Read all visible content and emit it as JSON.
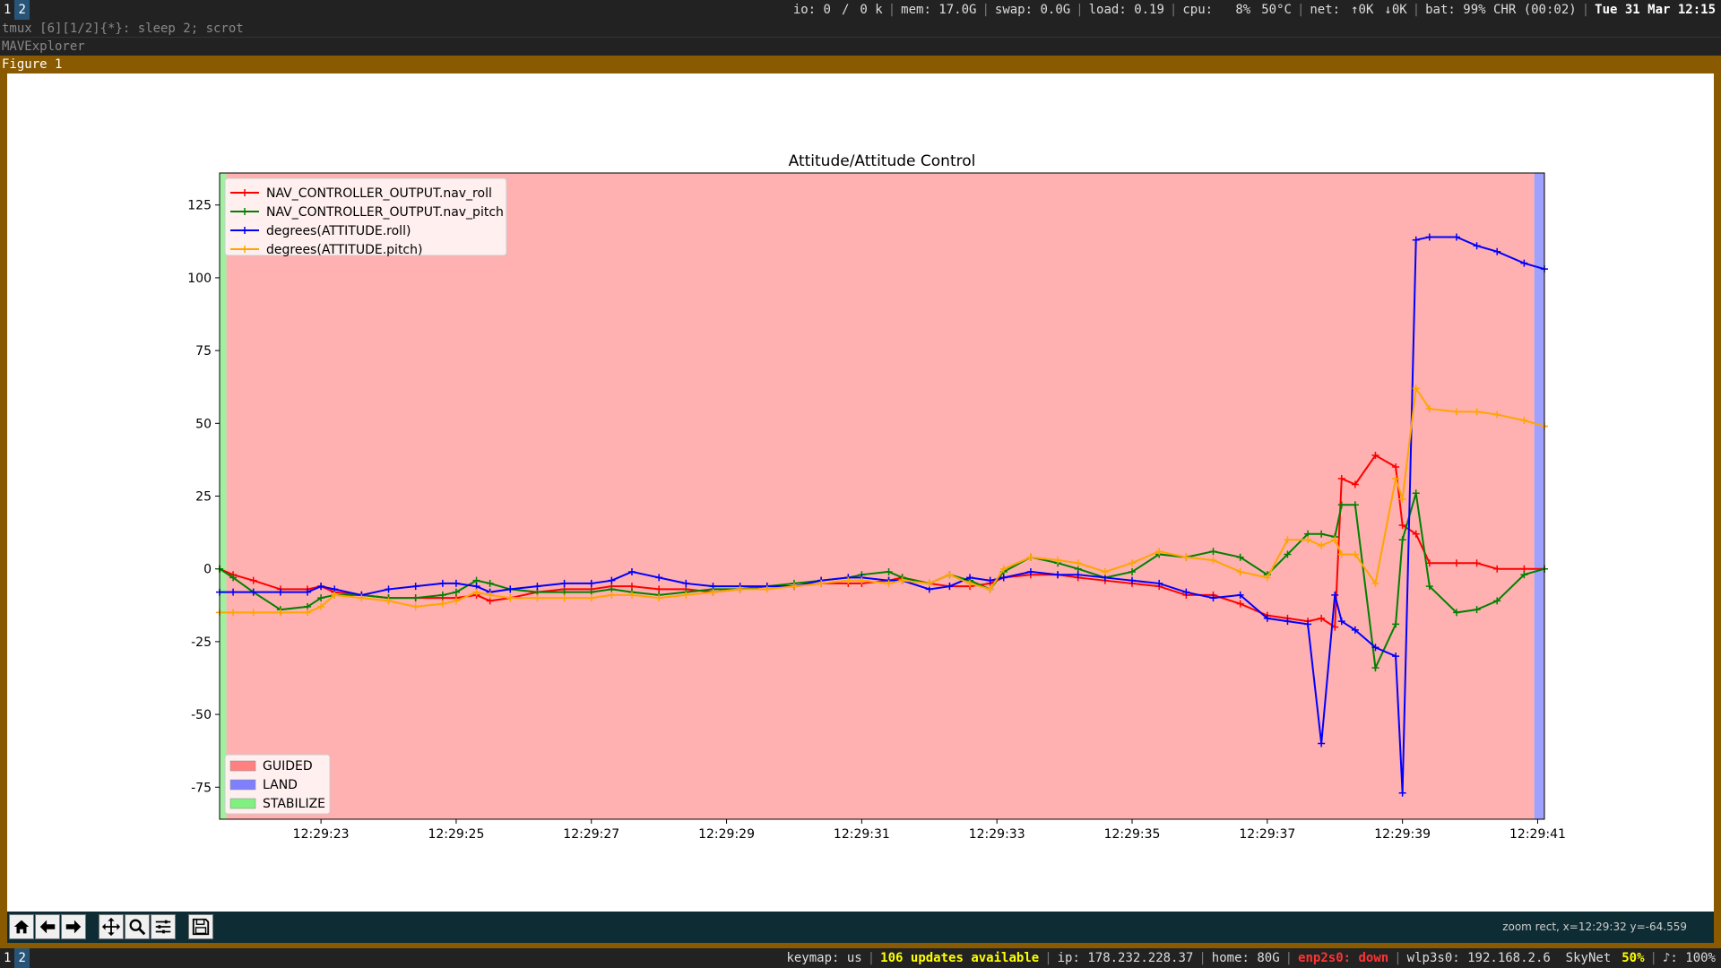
{
  "topbar": {
    "workspaces": [
      "1",
      "2"
    ],
    "io": "io: 0",
    "slash": "/",
    "io_k": "0 k",
    "mem": "mem: 17.0G",
    "swap": "swap: 0.0G",
    "load": "load: 0.19",
    "cpu": "cpu:   8%",
    "temp": "50°C",
    "net": "net:",
    "net_up": "↑0K",
    "net_down": "↓0K",
    "bat": "bat: 99% CHR (00:02)",
    "date": "Tue 31 Mar 12:15"
  },
  "tmux_title": "tmux [6][1/2]{*}:  sleep 2; scrot",
  "app_title": "MAVExplorer",
  "figure_title": "Figure 1",
  "toolbar": {
    "coord_text": "zoom rect, x=12:29:32 y=-64.559",
    "buttons": [
      "home-icon",
      "back-icon",
      "forward-icon",
      "pan-icon",
      "zoom-icon",
      "configure-icon",
      "save-icon"
    ]
  },
  "bottombar": {
    "workspaces": [
      "1",
      "2"
    ],
    "keymap": "keymap: us",
    "updates": "106 updates available",
    "ip": "ip: 178.232.228.37",
    "home": "home: 80G",
    "enp": "enp2s0: down",
    "wlp": "wlp3s0: 192.168.2.6  SkyNet",
    "wifi_pct": "50%",
    "vol": "♪: 100%"
  },
  "colors": {
    "guided": "#ffb0b0",
    "land": "#a0a0ff",
    "stabilize": "#a0f0a0",
    "roll": "#ff0000",
    "pitch": "#008000",
    "att_roll": "#0000ff",
    "att_pitch": "#ffa500"
  },
  "chart_data": {
    "type": "line",
    "title": "Attitude/Attitude Control",
    "xlabel": "",
    "ylabel": "",
    "xlim": [
      21.5,
      41.1
    ],
    "ylim": [
      -86,
      136
    ],
    "x_tick_labels": [
      "12:29:23",
      "12:29:25",
      "12:29:27",
      "12:29:29",
      "12:29:31",
      "12:29:33",
      "12:29:35",
      "12:29:37",
      "12:29:39",
      "12:29:41"
    ],
    "x_ticks": [
      23,
      25,
      27,
      29,
      31,
      33,
      35,
      37,
      39,
      41
    ],
    "y_ticks": [
      -75,
      -50,
      -25,
      0,
      25,
      50,
      75,
      100,
      125
    ],
    "legend_top": "top-left",
    "legend_bottom": "bottom-left",
    "modes": [
      {
        "name": "GUIDED",
        "start": 21.6,
        "end": 40.95
      },
      {
        "name": "LAND",
        "start": 40.95,
        "end": 41.1
      },
      {
        "name": "STABILIZE",
        "start": 21.5,
        "end": 21.6
      }
    ],
    "series": [
      {
        "name": "NAV_CONTROLLER_OUTPUT.nav_roll",
        "x": [
          21.5,
          21.7,
          22.0,
          22.4,
          22.8,
          23.0,
          23.2,
          23.6,
          24.0,
          24.4,
          24.8,
          25.0,
          25.3,
          25.5,
          25.8,
          26.2,
          26.6,
          27.0,
          27.3,
          27.6,
          28.0,
          28.4,
          28.8,
          29.2,
          29.6,
          30.0,
          30.4,
          30.8,
          31.0,
          31.4,
          31.6,
          32.0,
          32.3,
          32.6,
          32.9,
          33.1,
          33.5,
          33.9,
          34.2,
          34.6,
          35.0,
          35.4,
          35.8,
          36.2,
          36.6,
          37.0,
          37.3,
          37.6,
          37.8,
          38.0,
          38.1,
          38.3,
          38.6,
          38.9,
          39.0,
          39.2,
          39.4,
          39.8,
          40.1,
          40.4,
          40.8,
          41.1
        ],
        "y": [
          0,
          -2,
          -4,
          -7,
          -7,
          -6,
          -8,
          -9,
          -10,
          -10,
          -10,
          -10,
          -9,
          -11,
          -10,
          -8,
          -7,
          -7,
          -6,
          -6,
          -7,
          -7,
          -8,
          -7,
          -6,
          -6,
          -5,
          -5,
          -5,
          -4,
          -3,
          -5,
          -6,
          -6,
          -5,
          -3,
          -2,
          -2,
          -3,
          -4,
          -5,
          -6,
          -9,
          -9,
          -12,
          -16,
          -17,
          -18,
          -17,
          -20,
          31,
          29,
          39,
          35,
          15,
          12,
          2,
          2,
          2,
          0,
          0,
          0
        ]
      },
      {
        "name": "NAV_CONTROLLER_OUTPUT.nav_pitch",
        "x": [
          21.5,
          21.7,
          22.0,
          22.4,
          22.8,
          23.0,
          23.2,
          23.6,
          24.0,
          24.4,
          24.8,
          25.0,
          25.3,
          25.5,
          25.8,
          26.2,
          26.6,
          27.0,
          27.3,
          27.6,
          28.0,
          28.4,
          28.8,
          29.2,
          29.6,
          30.0,
          30.4,
          30.8,
          31.0,
          31.4,
          31.6,
          32.0,
          32.3,
          32.6,
          32.9,
          33.1,
          33.5,
          33.9,
          34.2,
          34.6,
          35.0,
          35.4,
          35.8,
          36.2,
          36.6,
          37.0,
          37.3,
          37.6,
          37.8,
          38.0,
          38.1,
          38.3,
          38.6,
          38.9,
          39.0,
          39.2,
          39.4,
          39.8,
          40.1,
          40.4,
          40.8,
          41.1
        ],
        "y": [
          0,
          -3,
          -8,
          -14,
          -13,
          -10,
          -9,
          -9,
          -10,
          -10,
          -9,
          -8,
          -4,
          -5,
          -7,
          -8,
          -8,
          -8,
          -7,
          -8,
          -9,
          -8,
          -7,
          -7,
          -6,
          -5,
          -4,
          -3,
          -2,
          -1,
          -3,
          -5,
          -2,
          -4,
          -7,
          -1,
          4,
          2,
          0,
          -3,
          -1,
          5,
          4,
          6,
          4,
          -2,
          5,
          12,
          12,
          11,
          22,
          22,
          -34,
          -19,
          10,
          26,
          -6,
          -15,
          -14,
          -11,
          -2,
          0
        ]
      },
      {
        "name": "degrees(ATTITUDE.roll)",
        "x": [
          21.5,
          21.7,
          22.0,
          22.4,
          22.8,
          23.0,
          23.2,
          23.6,
          24.0,
          24.4,
          24.8,
          25.0,
          25.3,
          25.5,
          25.8,
          26.2,
          26.6,
          27.0,
          27.3,
          27.6,
          28.0,
          28.4,
          28.8,
          29.2,
          29.6,
          30.0,
          30.4,
          30.8,
          31.0,
          31.4,
          31.6,
          32.0,
          32.3,
          32.6,
          32.9,
          33.1,
          33.5,
          33.9,
          34.2,
          34.6,
          35.0,
          35.4,
          35.8,
          36.2,
          36.6,
          37.0,
          37.3,
          37.6,
          37.8,
          38.0,
          38.1,
          38.3,
          38.6,
          38.9,
          39.0,
          39.2,
          39.4,
          39.8,
          40.1,
          40.4,
          40.8,
          41.1
        ],
        "y": [
          -8,
          -8,
          -8,
          -8,
          -8,
          -6,
          -7,
          -9,
          -7,
          -6,
          -5,
          -5,
          -6,
          -8,
          -7,
          -6,
          -5,
          -5,
          -4,
          -1,
          -3,
          -5,
          -6,
          -6,
          -6,
          -6,
          -4,
          -3,
          -3,
          -4,
          -4,
          -7,
          -6,
          -3,
          -4,
          -3,
          -1,
          -2,
          -2,
          -3,
          -4,
          -5,
          -8,
          -10,
          -9,
          -17,
          -18,
          -19,
          -60,
          -9,
          -18,
          -21,
          -27,
          -30,
          -77,
          113,
          114,
          114,
          111,
          109,
          105,
          103
        ]
      },
      {
        "name": "degrees(ATTITUDE.pitch)",
        "x": [
          21.5,
          21.7,
          22.0,
          22.4,
          22.8,
          23.0,
          23.2,
          23.6,
          24.0,
          24.4,
          24.8,
          25.0,
          25.3,
          25.5,
          25.8,
          26.2,
          26.6,
          27.0,
          27.3,
          27.6,
          28.0,
          28.4,
          28.8,
          29.2,
          29.6,
          30.0,
          30.4,
          30.8,
          31.0,
          31.4,
          31.6,
          32.0,
          32.3,
          32.6,
          32.9,
          33.1,
          33.5,
          33.9,
          34.2,
          34.6,
          35.0,
          35.4,
          35.8,
          36.2,
          36.6,
          37.0,
          37.3,
          37.6,
          37.8,
          38.0,
          38.1,
          38.3,
          38.6,
          38.9,
          39.0,
          39.2,
          39.4,
          39.8,
          40.1,
          40.4,
          40.8,
          41.1
        ],
        "y": [
          -15,
          -15,
          -15,
          -15,
          -15,
          -13,
          -9,
          -10,
          -11,
          -13,
          -12,
          -11,
          -8,
          -9,
          -10,
          -10,
          -10,
          -10,
          -9,
          -9,
          -10,
          -9,
          -8,
          -7,
          -7,
          -6,
          -5,
          -4,
          -4,
          -5,
          -4,
          -5,
          -2,
          -5,
          -7,
          0,
          4,
          3,
          2,
          -1,
          2,
          6,
          4,
          3,
          -1,
          -3,
          10,
          10,
          8,
          10,
          5,
          5,
          -5,
          31,
          24,
          62,
          55,
          54,
          54,
          53,
          51,
          49
        ]
      }
    ]
  }
}
